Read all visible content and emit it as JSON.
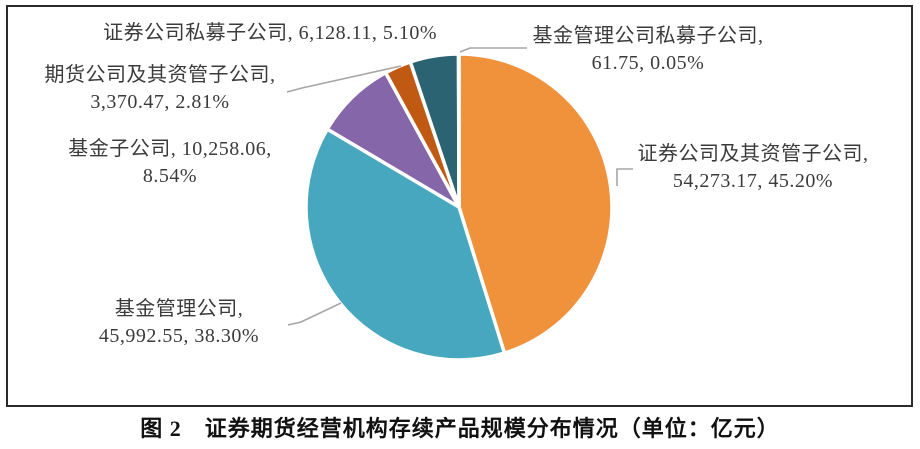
{
  "caption": "图 2　证券期货经营机构存续产品规模分布情况（单位：亿元）",
  "chart_data": {
    "type": "pie",
    "title": "证券期货经营机构存续产品规模分布情况",
    "unit": "亿元",
    "start_angle_deg": 0,
    "direction": "clockwise",
    "legend": "none",
    "label_format": "类别, 规模, 占比%",
    "slice_border_color": "#ffffff",
    "leader_line_color": "#a6a6a6",
    "series": [
      {
        "name": "证券公司及其资管子公司",
        "value": 54273.17,
        "pct": 45.2,
        "color": "#F0913C"
      },
      {
        "name": "基金管理公司",
        "value": 45992.55,
        "pct": 38.3,
        "color": "#46A7BE"
      },
      {
        "name": "基金子公司",
        "value": 10258.06,
        "pct": 8.54,
        "color": "#8566A8"
      },
      {
        "name": "期货公司及其资管子公司",
        "value": 3370.47,
        "pct": 2.81,
        "color": "#C05A12"
      },
      {
        "name": "证券公司私募子公司",
        "value": 6128.11,
        "pct": 5.1,
        "color": "#2B6373"
      },
      {
        "name": "基金管理公司私募子公司",
        "value": 61.75,
        "pct": 0.05,
        "color": "#4F81BD"
      }
    ]
  },
  "labels": {
    "sec_pe": {
      "line1": "证券公司私募子公司, 6,128.11, 5.10%"
    },
    "futures": {
      "line1": "期货公司及其资管子公司,",
      "line2": "3,370.47, 2.81%"
    },
    "fund_sub": {
      "line1": "基金子公司, 10,258.06,",
      "line2": "8.54%"
    },
    "fund_mgmt": {
      "line1": "基金管理公司,",
      "line2": "45,992.55, 38.30%"
    },
    "fund_mgmt_pe": {
      "line1": "基金管理公司私募子公司,",
      "line2": "61.75, 0.05%"
    },
    "sec_am": {
      "line1": "证券公司及其资管子公司,",
      "line2": "54,273.17, 45.20%"
    }
  }
}
